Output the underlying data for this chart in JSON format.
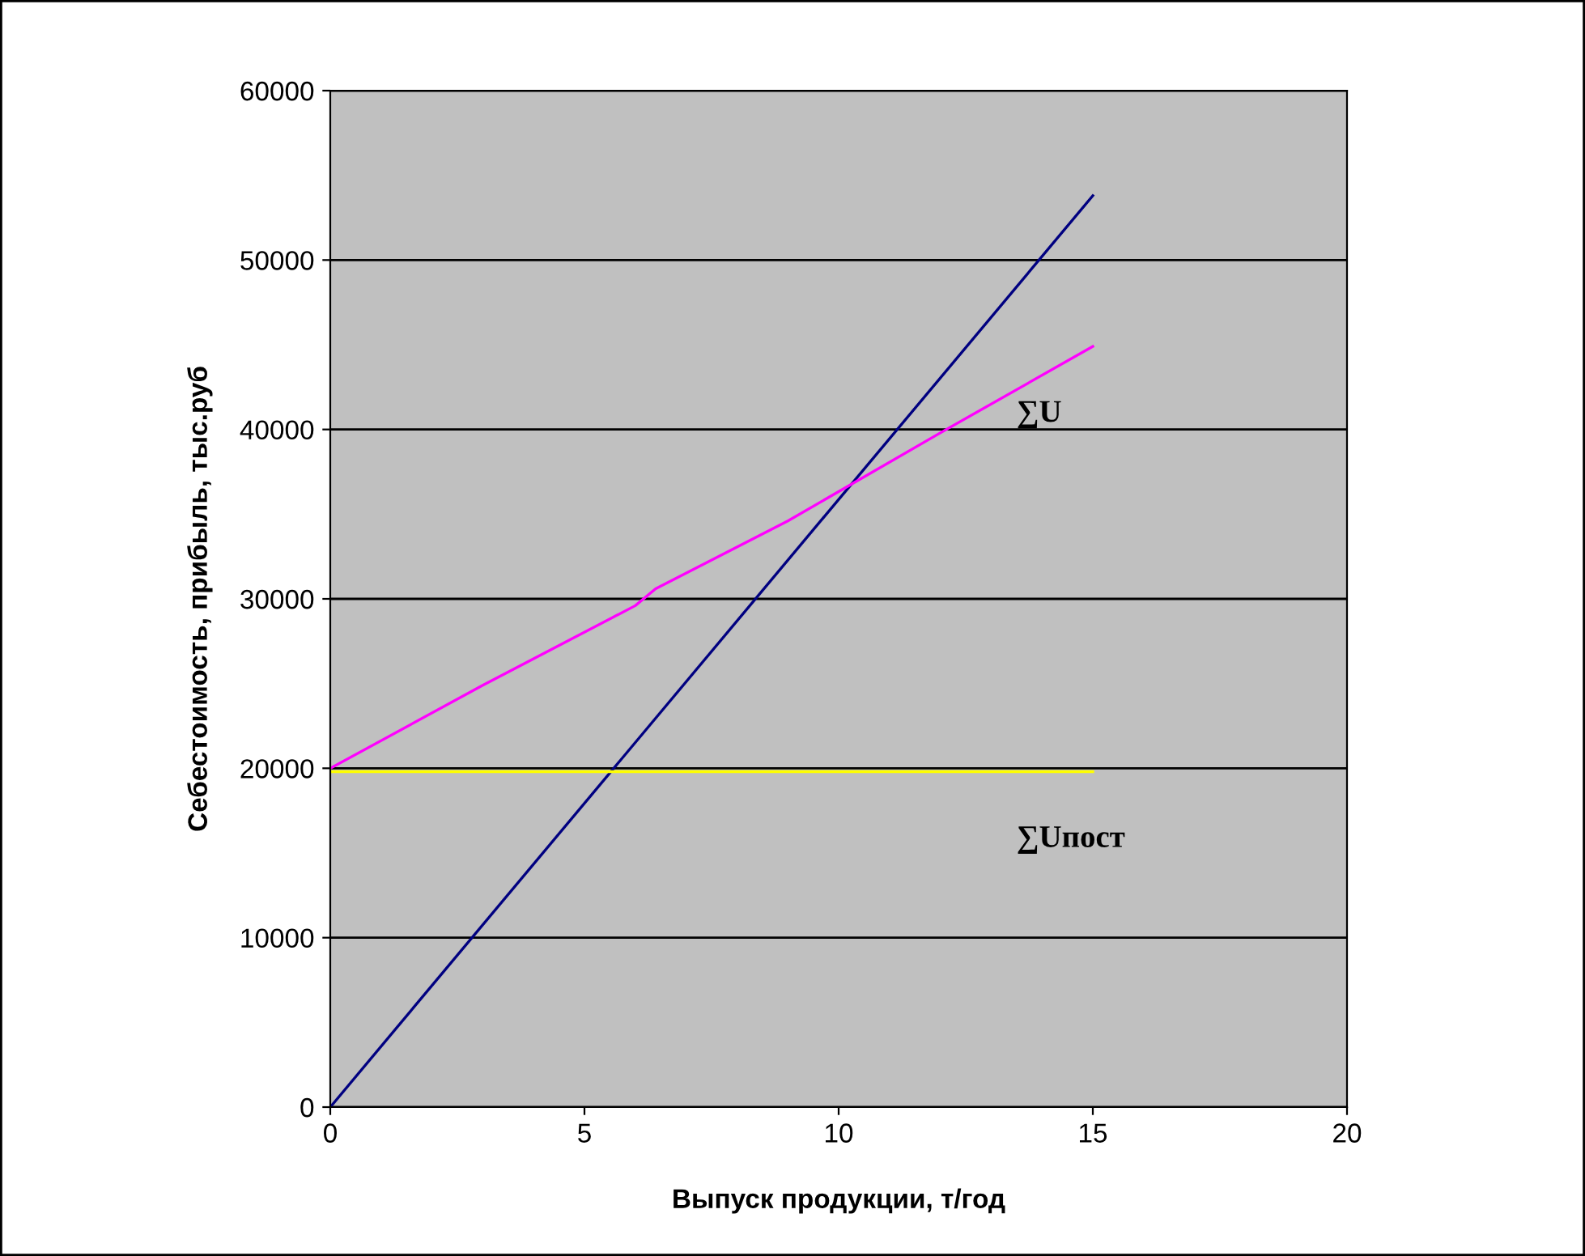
{
  "chart_data": {
    "type": "line",
    "xlabel": "Выпуск продукции, т/год",
    "ylabel": "Себестоимость, прибыль, тыс.руб",
    "xlim": [
      0,
      20
    ],
    "xticks": [
      0,
      5,
      10,
      15,
      20
    ],
    "ylim": [
      0,
      60000
    ],
    "yticks": [
      0,
      10000,
      20000,
      30000,
      40000,
      50000,
      60000
    ],
    "grid": "y",
    "series": [
      {
        "color": "#000080",
        "x": [
          0,
          15
        ],
        "values": [
          0,
          53800
        ]
      },
      {
        "name": "∑U",
        "color": "#ff00ff",
        "x": [
          0,
          3,
          6,
          6.4,
          9,
          12,
          15
        ],
        "values": [
          20000,
          24900,
          29600,
          30600,
          34600,
          39800,
          44900
        ]
      },
      {
        "name": "∑Uпост",
        "color": "#ffff00",
        "x": [
          0,
          15
        ],
        "values": [
          19800,
          19800
        ]
      }
    ]
  }
}
